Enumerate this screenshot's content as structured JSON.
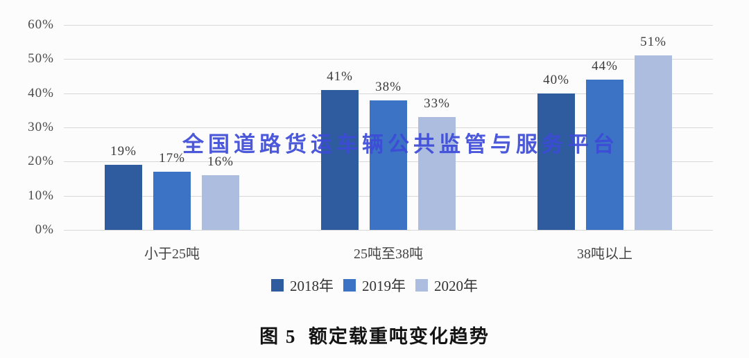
{
  "figure": {
    "background": "#FCFCFC",
    "caption": "图 5  额定载重吨变化趋势"
  },
  "watermark": {
    "text": "全国道路货运车辆公共监管与服务平台",
    "color": "#3D4BD8"
  },
  "colors": {
    "gridline": "#D7D7D7",
    "tick_text": "#4A4A4A",
    "label_text": "#3B3B3B"
  },
  "chart_data": {
    "type": "bar",
    "title": "图 5  额定载重吨变化趋势",
    "categories": [
      "小于25吨",
      "25吨至38吨",
      "38吨以上"
    ],
    "series": [
      {
        "name": "2018年",
        "color": "#2E5C9E",
        "values": [
          19,
          41,
          40
        ]
      },
      {
        "name": "2019年",
        "color": "#3C73C4",
        "values": [
          17,
          38,
          44
        ]
      },
      {
        "name": "2020年",
        "color": "#ACBDDF",
        "values": [
          16,
          33,
          51
        ]
      }
    ],
    "unit": "%",
    "ylim": [
      0,
      60
    ],
    "yticks": [
      0,
      10,
      20,
      30,
      40,
      50,
      60
    ],
    "ytick_labels": [
      "0%",
      "10%",
      "20%",
      "30%",
      "40%",
      "50%",
      "60%"
    ],
    "grid": true,
    "legend_position": "bottom",
    "data_labels": true
  }
}
